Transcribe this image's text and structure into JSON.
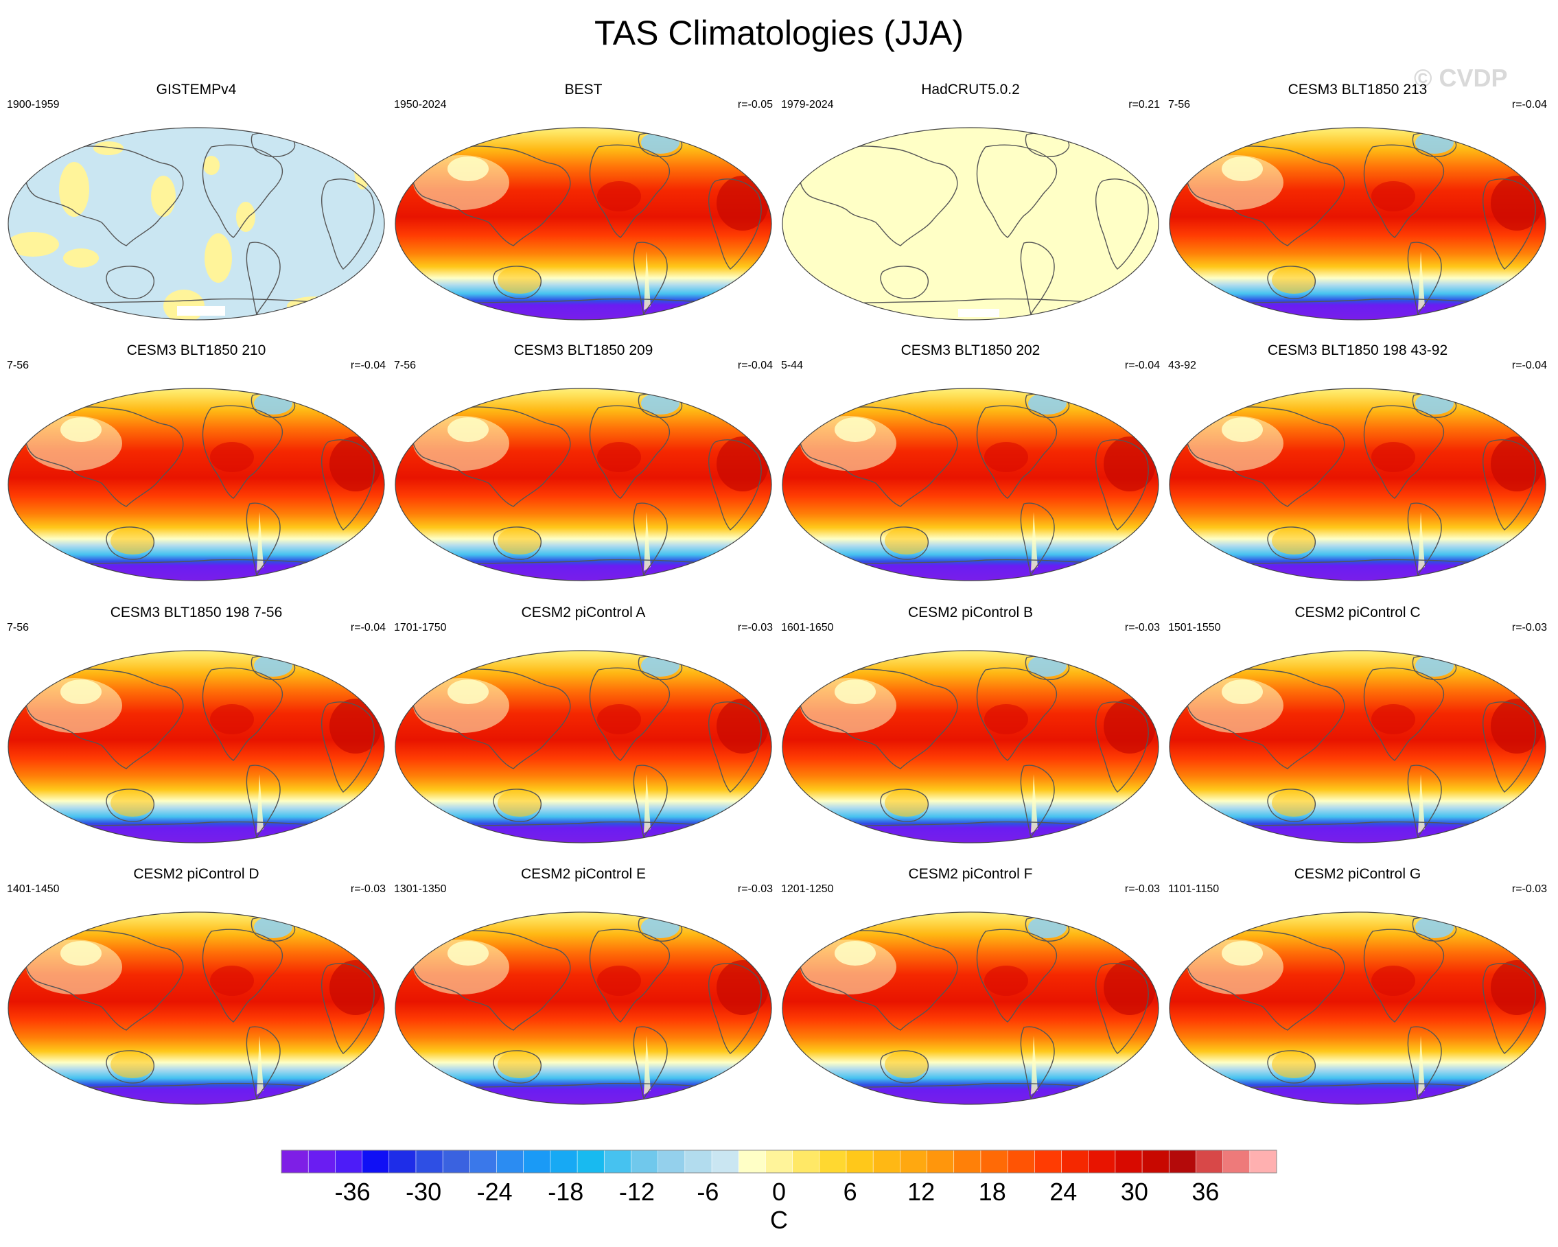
{
  "title": "TAS Climatologies (JJA)",
  "watermark": "© CVDP",
  "colors": {
    "background": "#ffffff",
    "coastline": "#555555",
    "no_data": "#ffffff"
  },
  "panels": [
    {
      "title": "GISTEMPv4",
      "left": "1900-1959",
      "right": "",
      "style": "gistemp"
    },
    {
      "title": "BEST",
      "left": "1950-2024",
      "right": "r=-0.05",
      "style": "full"
    },
    {
      "title": "HadCRUT5.0.2",
      "left": "1979-2024",
      "right": "r=0.21",
      "style": "hadcrut"
    },
    {
      "title": "CESM3 BLT1850 213",
      "left": "7-56",
      "right": "r=-0.04",
      "style": "full"
    },
    {
      "title": "CESM3 BLT1850 210",
      "left": "7-56",
      "right": "r=-0.04",
      "style": "full"
    },
    {
      "title": "CESM3 BLT1850 209",
      "left": "7-56",
      "right": "r=-0.04",
      "style": "full"
    },
    {
      "title": "CESM3 BLT1850 202",
      "left": "5-44",
      "right": "r=-0.04",
      "style": "full"
    },
    {
      "title": "CESM3 BLT1850 198 43-92",
      "left": "43-92",
      "right": "r=-0.04",
      "style": "full"
    },
    {
      "title": "CESM3 BLT1850 198 7-56",
      "left": "7-56",
      "right": "r=-0.04",
      "style": "full"
    },
    {
      "title": "CESM2 piControl A",
      "left": "1701-1750",
      "right": "r=-0.03",
      "style": "full"
    },
    {
      "title": "CESM2 piControl B",
      "left": "1601-1650",
      "right": "r=-0.03",
      "style": "full"
    },
    {
      "title": "CESM2 piControl C",
      "left": "1501-1550",
      "right": "r=-0.03",
      "style": "full"
    },
    {
      "title": "CESM2 piControl D",
      "left": "1401-1450",
      "right": "r=-0.03",
      "style": "full"
    },
    {
      "title": "CESM2 piControl E",
      "left": "1301-1350",
      "right": "r=-0.03",
      "style": "full"
    },
    {
      "title": "CESM2 piControl F",
      "left": "1201-1250",
      "right": "r=-0.03",
      "style": "full"
    },
    {
      "title": "CESM2 piControl G",
      "left": "1101-1150",
      "right": "r=-0.03",
      "style": "full"
    }
  ],
  "colorbar": {
    "unit": "C",
    "tick_labels": [
      "-36",
      "-30",
      "-24",
      "-18",
      "-12",
      "-6",
      "0",
      "6",
      "12",
      "18",
      "24",
      "30",
      "36"
    ],
    "tick_values": [
      -36,
      -30,
      -24,
      -18,
      -12,
      -6,
      0,
      6,
      12,
      18,
      24,
      30,
      36
    ],
    "min": -42,
    "max": 42,
    "step": 2,
    "colors": [
      "#7e1fe6",
      "#6a1df2",
      "#4d1cf8",
      "#1010f5",
      "#1e2de8",
      "#2e4fe4",
      "#3a62e0",
      "#3a78ea",
      "#2b8cf2",
      "#1a9af6",
      "#17a9f4",
      "#18baf0",
      "#46c2f0",
      "#70c8ec",
      "#94d0ec",
      "#b2dcee",
      "#cae6f2",
      "#ffffc6",
      "#fff49a",
      "#ffe866",
      "#ffd830",
      "#ffc81a",
      "#ffb814",
      "#ffa810",
      "#ff960c",
      "#ff8008",
      "#ff6a06",
      "#ff5404",
      "#ff3c02",
      "#f52800",
      "#e81400",
      "#d80a00",
      "#c80800",
      "#b40a0a",
      "#d84848",
      "#ee7a7a",
      "#ffb0b0"
    ]
  },
  "chart_data": {
    "type": "heatmap",
    "title": "TAS Climatologies (JJA)",
    "unit": "C",
    "colorbar_range": [
      -42,
      42
    ],
    "colorbar_ticks": [
      -36,
      -30,
      -24,
      -18,
      -12,
      -6,
      0,
      6,
      12,
      18,
      24,
      30,
      36
    ],
    "panels": [
      "GISTEMPv4",
      "BEST",
      "HadCRUT5.0.2",
      "CESM3 BLT1850 213",
      "CESM3 BLT1850 210",
      "CESM3 BLT1850 209",
      "CESM3 BLT1850 202",
      "CESM3 BLT1850 198 43-92",
      "CESM3 BLT1850 198 7-56",
      "CESM2 piControl A",
      "CESM2 piControl B",
      "CESM2 piControl C",
      "CESM2 piControl D",
      "CESM2 piControl E",
      "CESM2 piControl F",
      "CESM2 piControl G"
    ]
  }
}
